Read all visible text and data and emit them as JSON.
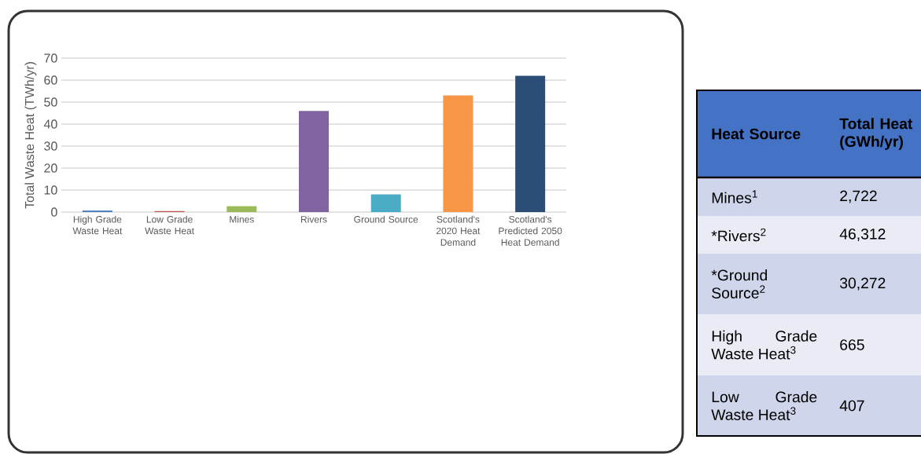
{
  "chart_data": [
    {
      "type": "bar",
      "ylabel": "Total Waste Heat (TWh/yr)",
      "categories": [
        "High Grade Waste Heat",
        "Low Grade Waste Heat",
        "Mines",
        "Rivers",
        "Ground Source",
        "Scotland's 2020 Heat Demand",
        "Scotland's Predicted 2050 Heat Demand"
      ],
      "values": [
        0.7,
        0.4,
        2.7,
        46,
        8,
        53,
        62
      ],
      "colors": [
        "#4f81bd",
        "#c0504d",
        "#9bbb59",
        "#8064a2",
        "#4bacc6",
        "#f79646",
        "#2c4d75"
      ],
      "ylim": [
        0,
        70
      ],
      "yticks": [
        0,
        10,
        20,
        30,
        40,
        50,
        60,
        70
      ],
      "grid": "y"
    },
    {
      "type": "other",
      "annotations": [
        "Heat Source",
        "Total Heat (GWh/yr)",
        "Mines$^{1}$",
        "2,722",
        "*Rivers$^{2}$",
        "46,312",
        "*Ground Source$^{2}$",
        "30,272",
        "High Grade Waste Heat$^{3}$",
        "665",
        "Low Grade Waste Heat$^{3}$",
        "407"
      ]
    }
  ]
}
